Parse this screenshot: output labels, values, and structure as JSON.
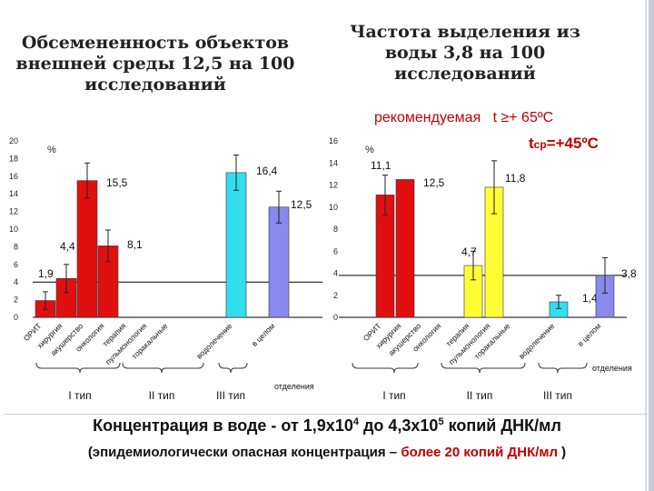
{
  "titles": {
    "left": "Обсемененность объектов внешней среды 12,5 на 100 исследований",
    "right": "Частота выделения из воды 3,8 на 100 исследований"
  },
  "temperature": {
    "recommended_label": "рекомендуемая",
    "recommended_value": "t ≥+ 65ºC",
    "tcp_t": "t",
    "tcp_sub": "ср",
    "tcp_value": "=+45ºC"
  },
  "concentration": {
    "prefix": "Концентрация в воде - от 1,9х10",
    "exp1": "4",
    "middle": " до 4,3х10",
    "exp2": "5",
    "suffix": " копий ДНК/мл"
  },
  "epidemiology": {
    "open": "(эпидемиологически опасная концентрация – ",
    "red": "более 20 копий ДНК/мл",
    "close": " )"
  },
  "chart_data": [
    {
      "type": "bar",
      "name": "left",
      "unit": "%",
      "ylim": [
        0,
        20
      ],
      "yticks": [
        0,
        2,
        4,
        6,
        8,
        10,
        12,
        14,
        16,
        18,
        20
      ],
      "categories": [
        "ОРИТ",
        "хирургия",
        "акушерство",
        "онкология",
        "терапия",
        "пульмонология",
        "торакальные",
        "водолечение",
        "в целом"
      ],
      "values": [
        1.9,
        4.4,
        15.5,
        8.1,
        null,
        null,
        null,
        16.4,
        12.5
      ],
      "labels": [
        "1,9",
        "4,4",
        "15,5",
        "8,1",
        "",
        "",
        "",
        "16,4",
        "12,5"
      ],
      "errors": [
        1.0,
        1.6,
        2.0,
        1.8,
        0,
        0,
        0,
        2.0,
        1.8
      ],
      "colors": [
        "#e01010",
        "#e01010",
        "#e01010",
        "#e01010",
        "#e01010",
        "#e01010",
        "#e01010",
        "#33ddee",
        "#8888ee"
      ],
      "groups": [
        "I тип",
        "II тип",
        "III тип"
      ],
      "section_label": "отделения"
    },
    {
      "type": "bar",
      "name": "right",
      "unit": "%",
      "ylim": [
        0,
        16
      ],
      "yticks": [
        0,
        2,
        4,
        6,
        8,
        10,
        12,
        14,
        16
      ],
      "categories": [
        "ОРИТ",
        "хирургия",
        "акушерство",
        "онкология",
        "терапия",
        "пульмонология",
        "торакальные",
        "водолечение",
        "в целом"
      ],
      "values": [
        11.1,
        12.5,
        null,
        null,
        4.7,
        11.8,
        null,
        1.4,
        3.8
      ],
      "labels": [
        "11,1",
        "12,5",
        "",
        "",
        "4,7",
        "11,8",
        "",
        "1,4",
        "3,8"
      ],
      "errors": [
        1.8,
        0,
        0,
        0,
        1.3,
        2.4,
        0,
        0.6,
        1.6
      ],
      "colors": [
        "#e01010",
        "#e01010",
        "#e01010",
        "#e01010",
        "#ffff33",
        "#ffff33",
        "#ffff33",
        "#33ddee",
        "#8888ee"
      ],
      "groups": [
        "I тип",
        "II тип",
        "III тип"
      ],
      "section_label": "отделения"
    }
  ]
}
